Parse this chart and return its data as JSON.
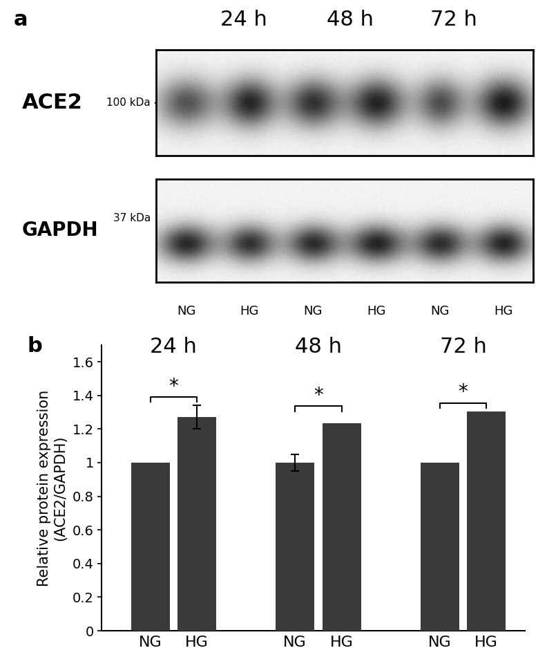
{
  "fig_width": 7.92,
  "fig_height": 9.5,
  "panel_a_label": "a",
  "panel_b_label": "b",
  "time_labels": [
    "24 h",
    "48 h",
    "72 h"
  ],
  "condition_labels": [
    "NG",
    "HG",
    "NG",
    "HG",
    "NG",
    "HG"
  ],
  "ace2_label": "ACE2",
  "gapdh_label": "GAPDH",
  "ace2_kda": "100 kDa",
  "gapdh_kda": "37 kDa",
  "bar_values": [
    1.0,
    1.27,
    1.0,
    1.235,
    1.0,
    1.305
  ],
  "bar_errors": [
    0.0,
    0.07,
    0.05,
    0.0,
    0.0,
    0.0
  ],
  "bar_color": "#3a3a3a",
  "ylabel": "Relative protein expression\n(ACE2/GAPDH)",
  "ylim": [
    0,
    1.7
  ],
  "yticks": [
    0,
    0.2,
    0.4,
    0.6,
    0.8,
    1.0,
    1.2,
    1.4,
    1.6
  ],
  "significance_star": "*",
  "bg_color": "#ffffff",
  "ace2_band_intensities": [
    0.7,
    0.9,
    0.85,
    0.92,
    0.72,
    0.95
  ],
  "gapdh_band_intensities": [
    0.9,
    0.85,
    0.88,
    0.92,
    0.87,
    0.91
  ],
  "ace2_band_widths": [
    55,
    48,
    52,
    52,
    45,
    52
  ],
  "gapdh_band_widths": [
    52,
    48,
    50,
    52,
    50,
    50
  ],
  "time_label_fontsize": 22,
  "label_fontsize": 22,
  "kda_fontsize": 11,
  "bar_xlabel_fontsize": 16,
  "bar_ylabel_fontsize": 15,
  "bar_ytick_fontsize": 14,
  "bar_group_label_fontsize": 22
}
